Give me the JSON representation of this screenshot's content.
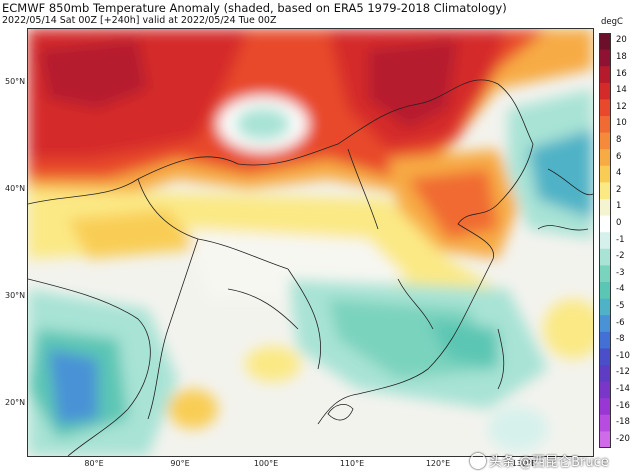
{
  "title": "ECMWF 850mb Temperature Anomaly (shaded, based on ERA5 1979-2018 Climatology)",
  "subtitle": "2022/05/14 Sat 00Z [+240h] valid at 2022/05/24 Tue 00Z",
  "lat_labels": [
    "50°N",
    "40°N",
    "30°N",
    "20°N"
  ],
  "lon_labels": [
    "80°E",
    "90°E",
    "100°E",
    "110°E",
    "120°E",
    "130°E"
  ],
  "colorbar": {
    "unit": "degC",
    "levels": [
      "20",
      "18",
      "16",
      "14",
      "12",
      "10",
      "8",
      "6",
      "4",
      "2",
      "1",
      "0",
      "-1",
      "-2",
      "-3",
      "-4",
      "-5",
      "-6",
      "-8",
      "-10",
      "-12",
      "-14",
      "-16",
      "-18",
      "-20"
    ],
    "colors": [
      "#6b0f2a",
      "#8f1232",
      "#b51a2d",
      "#d52a2a",
      "#e8492c",
      "#f06a33",
      "#f58a3a",
      "#f7ab45",
      "#f9cd55",
      "#fbe985",
      "#f4f4d0",
      "#ffffff",
      "#d6f1ec",
      "#a8e3d5",
      "#7ad3bd",
      "#5cc6b4",
      "#4fb2c6",
      "#4a92d6",
      "#4370d4",
      "#4a4fc9",
      "#5f3cc4",
      "#7a35c9",
      "#9a37d4",
      "#b84be0",
      "#cf6ae9"
    ]
  },
  "watermark": "头条 @西昆仑Bruce"
}
